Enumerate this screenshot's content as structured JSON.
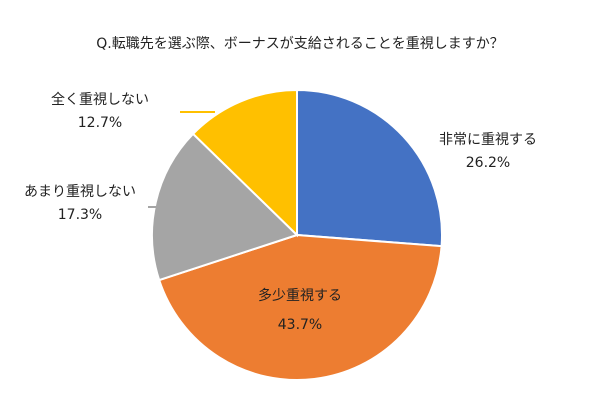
{
  "chart_data": {
    "type": "pie",
    "title": "Q.転職先を選ぶ際、ボーナスが支給されることを重視しますか？",
    "categories": [
      "非常に重視する",
      "多少重視する",
      "あまり重視しない",
      "全く重視しない"
    ],
    "values": [
      26.2,
      43.7,
      17.3,
      12.7
    ],
    "value_labels": [
      "26.2%",
      "43.7%",
      "17.3%",
      "12.7%"
    ],
    "colors": [
      "#4472c4",
      "#ed7d31",
      "#a5a5a5",
      "#ffc000"
    ]
  }
}
